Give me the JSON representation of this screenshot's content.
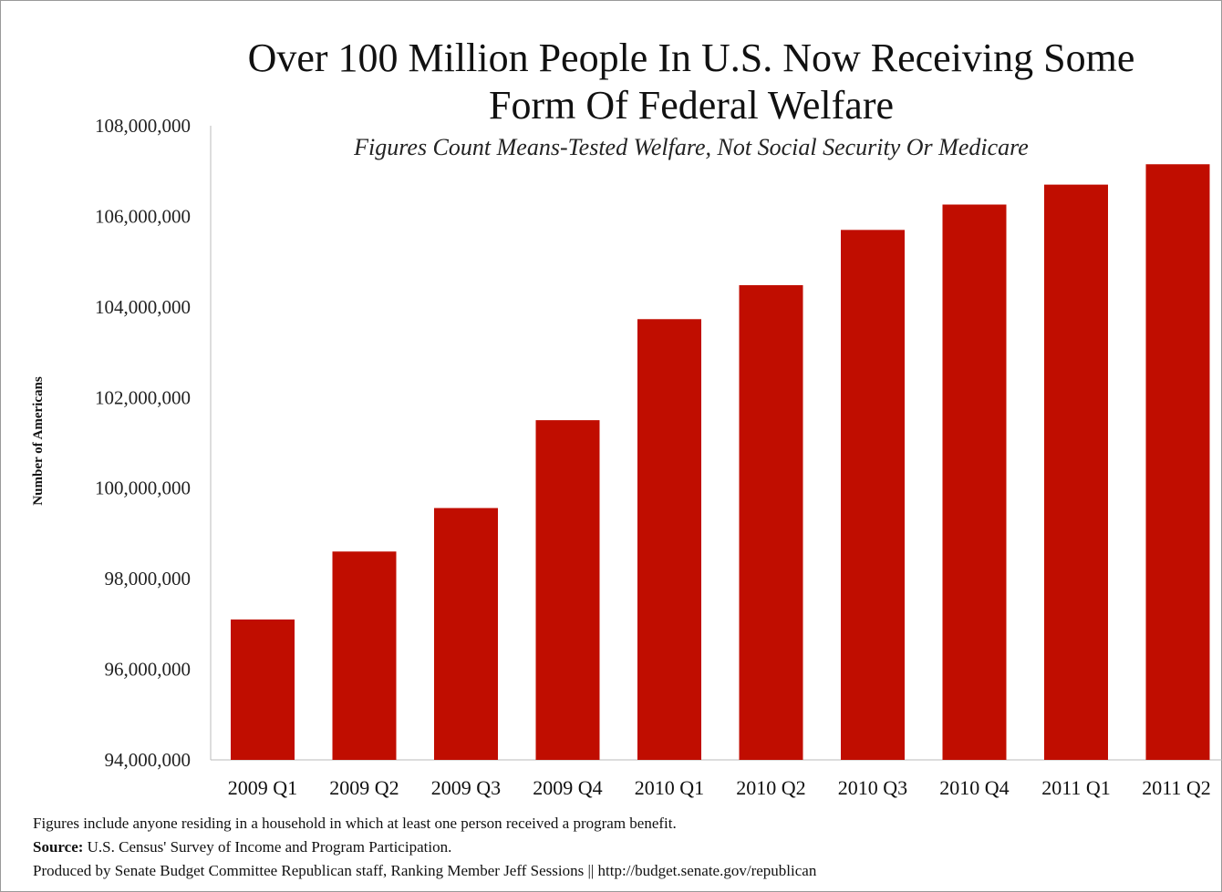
{
  "chart_data": {
    "type": "bar",
    "title_lines": [
      "Over 100 Million People In U.S. Now Receiving Some",
      "Form Of Federal Welfare"
    ],
    "subtitle": "Figures Count Means-Tested Welfare, Not Social Security Or Medicare",
    "ylabel": "Number of Americans",
    "xlabel": "",
    "categories": [
      "2009 Q1",
      "2009 Q2",
      "2009 Q3",
      "2009 Q4",
      "2010 Q1",
      "2010 Q2",
      "2010 Q3",
      "2010 Q4",
      "2011 Q1",
      "2011 Q2"
    ],
    "values": [
      97100000,
      98600000,
      99560000,
      101500000,
      103730000,
      104480000,
      105700000,
      106260000,
      106700000,
      107150000
    ],
    "ylim": [
      94000000,
      108000000
    ],
    "yticks": [
      "94,000,000",
      "96,000,000",
      "98,000,000",
      "100,000,000",
      "102,000,000",
      "104,000,000",
      "106,000,000",
      "108,000,000"
    ],
    "ytick_values": [
      94000000,
      96000000,
      98000000,
      100000000,
      102000000,
      104000000,
      106000000,
      108000000
    ],
    "bar_color": "#c00d00",
    "grid": false,
    "legend": "none"
  },
  "footer": {
    "note": "Figures include anyone residing in a household in which at least one person received a program benefit.",
    "source_label": "Source:",
    "source_text": " U.S. Census' Survey of Income and Program Participation.",
    "credit": "Produced by Senate Budget Committee Republican staff, Ranking Member Jeff Sessions || http://budget.senate.gov/republican"
  }
}
